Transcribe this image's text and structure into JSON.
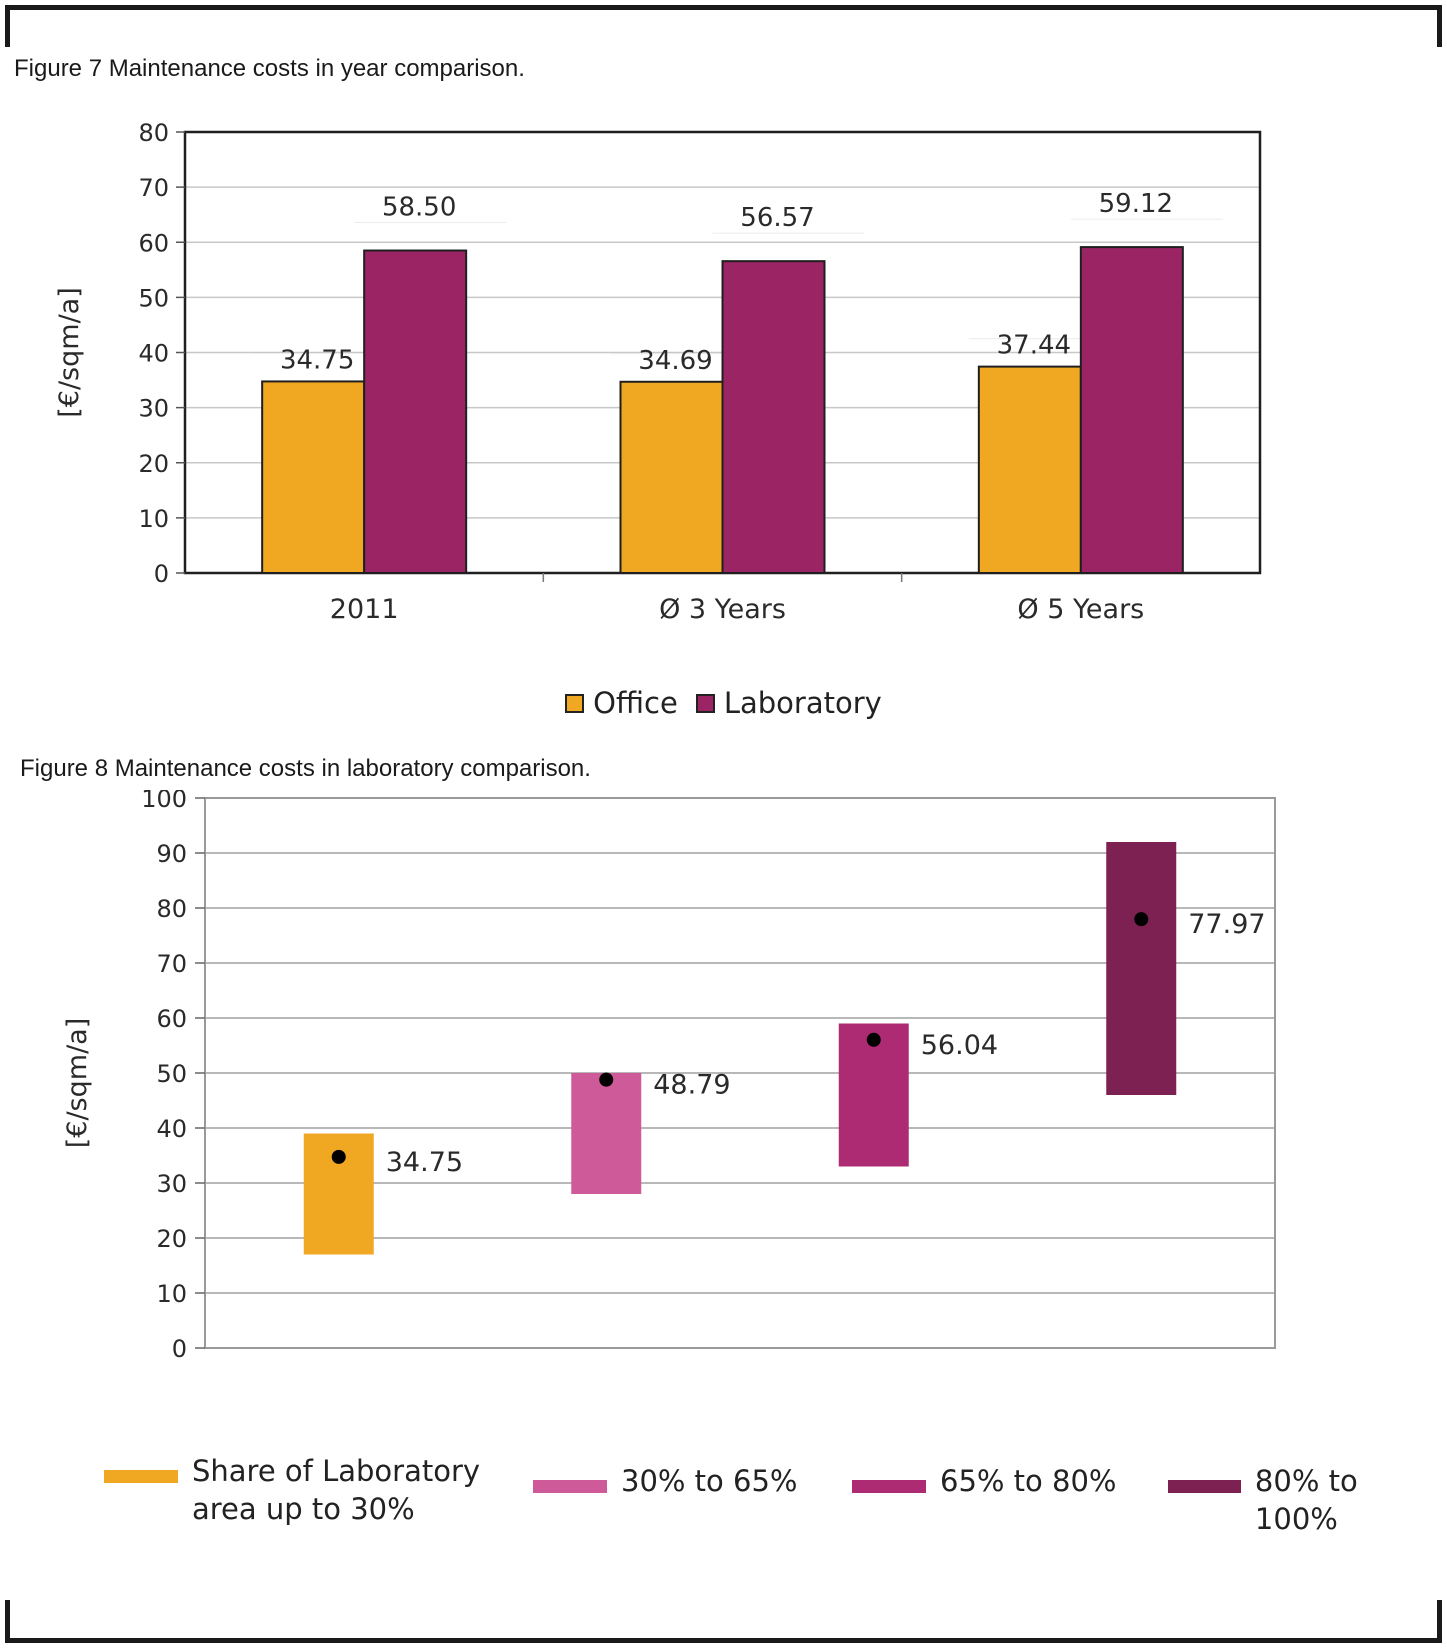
{
  "figure7": {
    "title": "Figure 7 Maintenance costs in year comparison.",
    "legend": [
      {
        "label": "Office",
        "color": "#f0a722"
      },
      {
        "label": "Laboratory",
        "color": "#9b2464"
      }
    ]
  },
  "figure8": {
    "title": "Figure 8 Maintenance costs in laboratory comparison.",
    "legend": [
      {
        "label": "Share of Laboratory\narea up to 30%",
        "color": "#f0a722"
      },
      {
        "label": "30% to 65%",
        "color": "#cf5a99"
      },
      {
        "label": "65% to 80%",
        "color": "#ad2b72"
      },
      {
        "label": "80% to 100%",
        "color": "#7d2152"
      }
    ]
  },
  "chart_data": [
    {
      "type": "bar",
      "title": "Figure 7 Maintenance costs in year comparison.",
      "categories": [
        "2011",
        "Ø 3 Years",
        "Ø 5 Years"
      ],
      "series": [
        {
          "name": "Office",
          "values": [
            34.75,
            34.69,
            37.44
          ],
          "labels": [
            "34.75",
            "34.69",
            "37.44"
          ],
          "color": "#f0a722"
        },
        {
          "name": "Laboratory",
          "values": [
            58.5,
            56.57,
            59.12
          ],
          "labels": [
            "58.50",
            "56.57",
            "59.12"
          ],
          "color": "#9b2464"
        }
      ],
      "xlabel": "",
      "ylabel": "[€/sqm/a]",
      "ylim": [
        0,
        80
      ],
      "yticks": [
        0,
        10,
        20,
        30,
        40,
        50,
        60,
        70,
        80
      ],
      "grid": true,
      "legend_position": "bottom-center"
    },
    {
      "type": "range-bar",
      "title": "Figure 8 Maintenance costs in laboratory comparison.",
      "categories": [
        "Share of Laboratory area up to 30%",
        "30% to 65%",
        "65% to 80%",
        "80% to 100%"
      ],
      "ranges": [
        {
          "low": 17,
          "high": 39,
          "mean": 34.75,
          "label": "34.75",
          "color": "#f0a722"
        },
        {
          "low": 28,
          "high": 50,
          "mean": 48.79,
          "label": "48.79",
          "color": "#cf5a99"
        },
        {
          "low": 33,
          "high": 59,
          "mean": 56.04,
          "label": "56.04",
          "color": "#ad2b72"
        },
        {
          "low": 46,
          "high": 92,
          "mean": 77.97,
          "label": "77.97",
          "color": "#7d2152"
        }
      ],
      "xlabel": "",
      "ylabel": "[€/sqm/a]",
      "ylim": [
        0,
        100
      ],
      "yticks": [
        0,
        10,
        20,
        30,
        40,
        50,
        60,
        70,
        80,
        90,
        100
      ],
      "grid": true,
      "legend_position": "bottom"
    }
  ]
}
